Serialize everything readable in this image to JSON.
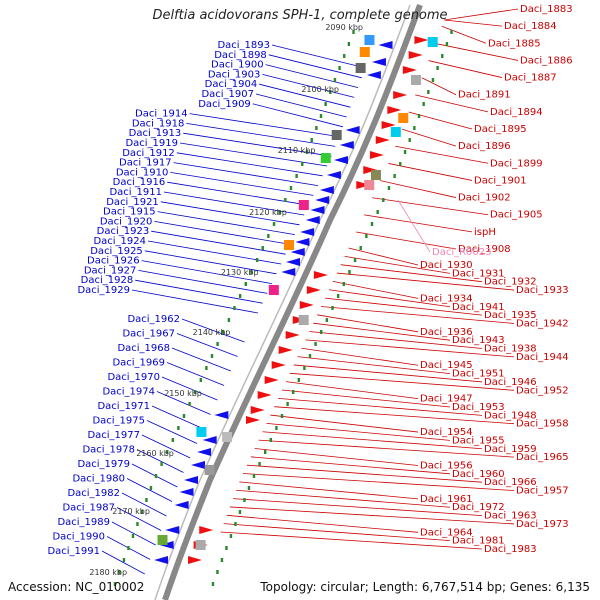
{
  "title": "Delftia acidovorans SPH-1, complete genome",
  "footer": {
    "accession": "Accession: NC_010002",
    "topology": "Topology: circular; Length: 6,767,514 bp; Genes: 6,135"
  },
  "colors": {
    "left_labels": "#0000cc",
    "right_labels": "#cc0000",
    "rna_label": "#ee88bb",
    "backbone": "#888888",
    "tick_marks": "#2a8a2a",
    "reverse_features": "#1010ee",
    "forward_features": "#ee1010"
  },
  "kbp_ticks": [
    "2090 kbp",
    "2100 kbp",
    "2110 kbp",
    "2120 kbp",
    "2130 kbp",
    "2140 kbp",
    "2150 kbp",
    "2160 kbp",
    "2170 kbp",
    "2180 kbp"
  ],
  "left_labels": [
    "Daci_1893",
    "Daci_1898",
    "Daci_1900",
    "Daci_1903",
    "Daci_1904",
    "Daci_1907",
    "Daci_1909",
    "Daci_1914",
    "Daci_1918",
    "Daci_1913",
    "Daci_1919",
    "Daci_1912",
    "Daci_1917",
    "Daci_1910",
    "Daci_1916",
    "Daci_1911",
    "Daci_1921",
    "Daci_1915",
    "Daci_1920",
    "Daci_1923",
    "Daci_1924",
    "Daci_1925",
    "Daci_1926",
    "Daci_1927",
    "Daci_1928",
    "Daci_1929",
    "Daci_1962",
    "Daci_1967",
    "Daci_1968",
    "Daci_1969",
    "Daci_1970",
    "Daci_1974",
    "Daci_1971",
    "Daci_1975",
    "Daci_1977",
    "Daci_1978",
    "Daci_1979",
    "Daci_1980",
    "Daci_1982",
    "Daci_1987",
    "Daci_1989",
    "Daci_1990",
    "Daci_1991"
  ],
  "right_labels": [
    "Daci_1883",
    "Daci_1884",
    "Daci_1885",
    "Daci_1886",
    "Daci_1887",
    "Daci_1891",
    "Daci_1894",
    "Daci_1895",
    "Daci_1896",
    "Daci_1899",
    "Daci_1901",
    "Daci_1902",
    "Daci_1905",
    "ispH",
    "Daci_1908",
    "Daci_1930",
    "Daci_1931",
    "Daci_1932",
    "Daci_1933",
    "Daci_1934",
    "Daci_1941",
    "Daci_1935",
    "Daci_1942",
    "Daci_1936",
    "Daci_1943",
    "Daci_1938",
    "Daci_1944",
    "Daci_1945",
    "Daci_1951",
    "Daci_1946",
    "Daci_1952",
    "Daci_1947",
    "Daci_1953",
    "Daci_1948",
    "Daci_1958",
    "Daci_1954",
    "Daci_1955",
    "Daci_1959",
    "Daci_1965",
    "Daci_1956",
    "Daci_1960",
    "Daci_1966",
    "Daci_1957",
    "Daci_1961",
    "Daci_1972",
    "Daci_1963",
    "Daci_1973",
    "Daci_1964",
    "Daci_1981",
    "Daci_1983"
  ],
  "rna_labels": [
    "Daci_R0023"
  ]
}
